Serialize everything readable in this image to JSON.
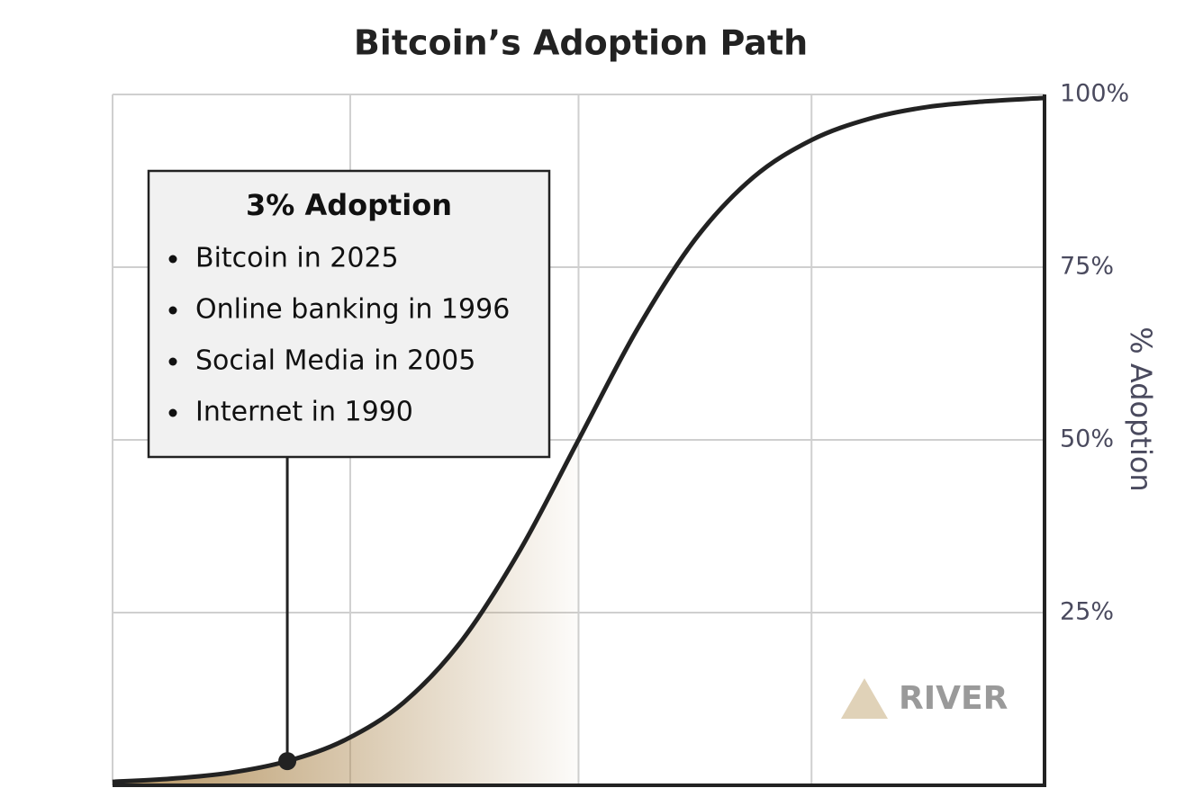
{
  "chart_data": {
    "type": "line",
    "title": "Bitcoin’s Adoption Path",
    "y_label": "% Adoption",
    "y_axis_side": "right",
    "values": [
      0.5,
      0.96,
      1.8,
      3.5,
      6.6,
      12.0,
      21.0,
      34.1,
      50,
      65.9,
      79.0,
      88.0,
      93.4,
      96.5,
      98.2,
      99.0,
      99.5
    ],
    "color": "#222222",
    "shade_color": "#b08d57",
    "shade_to_index": 8,
    "highlight_index": 3,
    "ylim": [
      0,
      100
    ],
    "yticks": [
      {
        "value": 25,
        "label": "25%"
      },
      {
        "value": 50,
        "label": "50%"
      },
      {
        "value": 75,
        "label": "75%"
      },
      {
        "value": 100,
        "label": "100%"
      }
    ],
    "grid": true,
    "annotation": {
      "title": "3% Adoption",
      "items": [
        "Bitcoin in 2025",
        "Online banking in 1996",
        "Social Media in 2005",
        "Internet in 1990"
      ]
    },
    "watermark": "RIVER"
  }
}
